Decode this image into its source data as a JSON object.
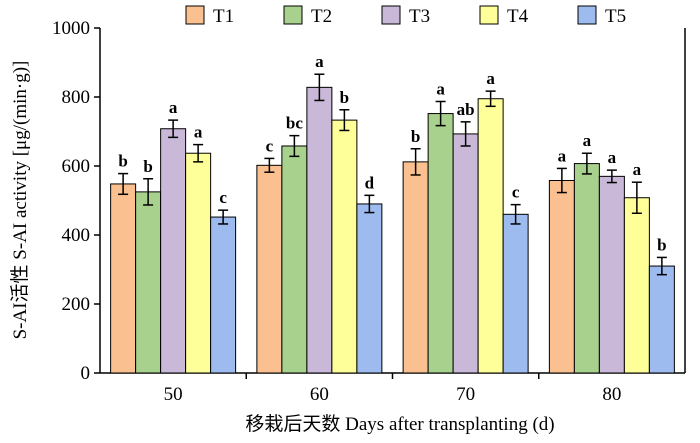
{
  "chart_data": {
    "type": "bar",
    "title": "",
    "xlabel": "移栽后天数 Days after transplanting (d)",
    "ylabel": "S-AI活性 S-AI activity [μg/(min·g)]",
    "ylim": [
      0,
      1000
    ],
    "yticks": [
      "0",
      "200",
      "400",
      "600",
      "800",
      "1000"
    ],
    "categories": [
      "50",
      "60",
      "70",
      "80"
    ],
    "legend_position": "top",
    "series": [
      {
        "name": "T1",
        "color": "#fac090",
        "values": [
          548,
          602,
          612,
          558
        ],
        "errors": [
          30,
          20,
          38,
          35
        ],
        "labels": [
          "b",
          "c",
          "b",
          "a"
        ]
      },
      {
        "name": "T2",
        "color": "#a9d18e",
        "values": [
          525,
          658,
          752,
          607
        ],
        "errors": [
          38,
          30,
          35,
          30
        ],
        "labels": [
          "b",
          "bc",
          "a",
          "a"
        ]
      },
      {
        "name": "T3",
        "color": "#c9b8d8",
        "values": [
          708,
          828,
          693,
          570
        ],
        "errors": [
          25,
          38,
          35,
          18
        ],
        "labels": [
          "a",
          "a",
          "ab",
          "a"
        ]
      },
      {
        "name": "T4",
        "color": "#ffff99",
        "values": [
          637,
          733,
          795,
          508
        ],
        "errors": [
          25,
          30,
          22,
          45
        ],
        "labels": [
          "a",
          "b",
          "a",
          "a"
        ]
      },
      {
        "name": "T5",
        "color": "#9dbbee",
        "values": [
          452,
          490,
          460,
          310
        ],
        "errors": [
          20,
          25,
          28,
          25
        ],
        "labels": [
          "c",
          "d",
          "c",
          "b"
        ]
      }
    ]
  }
}
